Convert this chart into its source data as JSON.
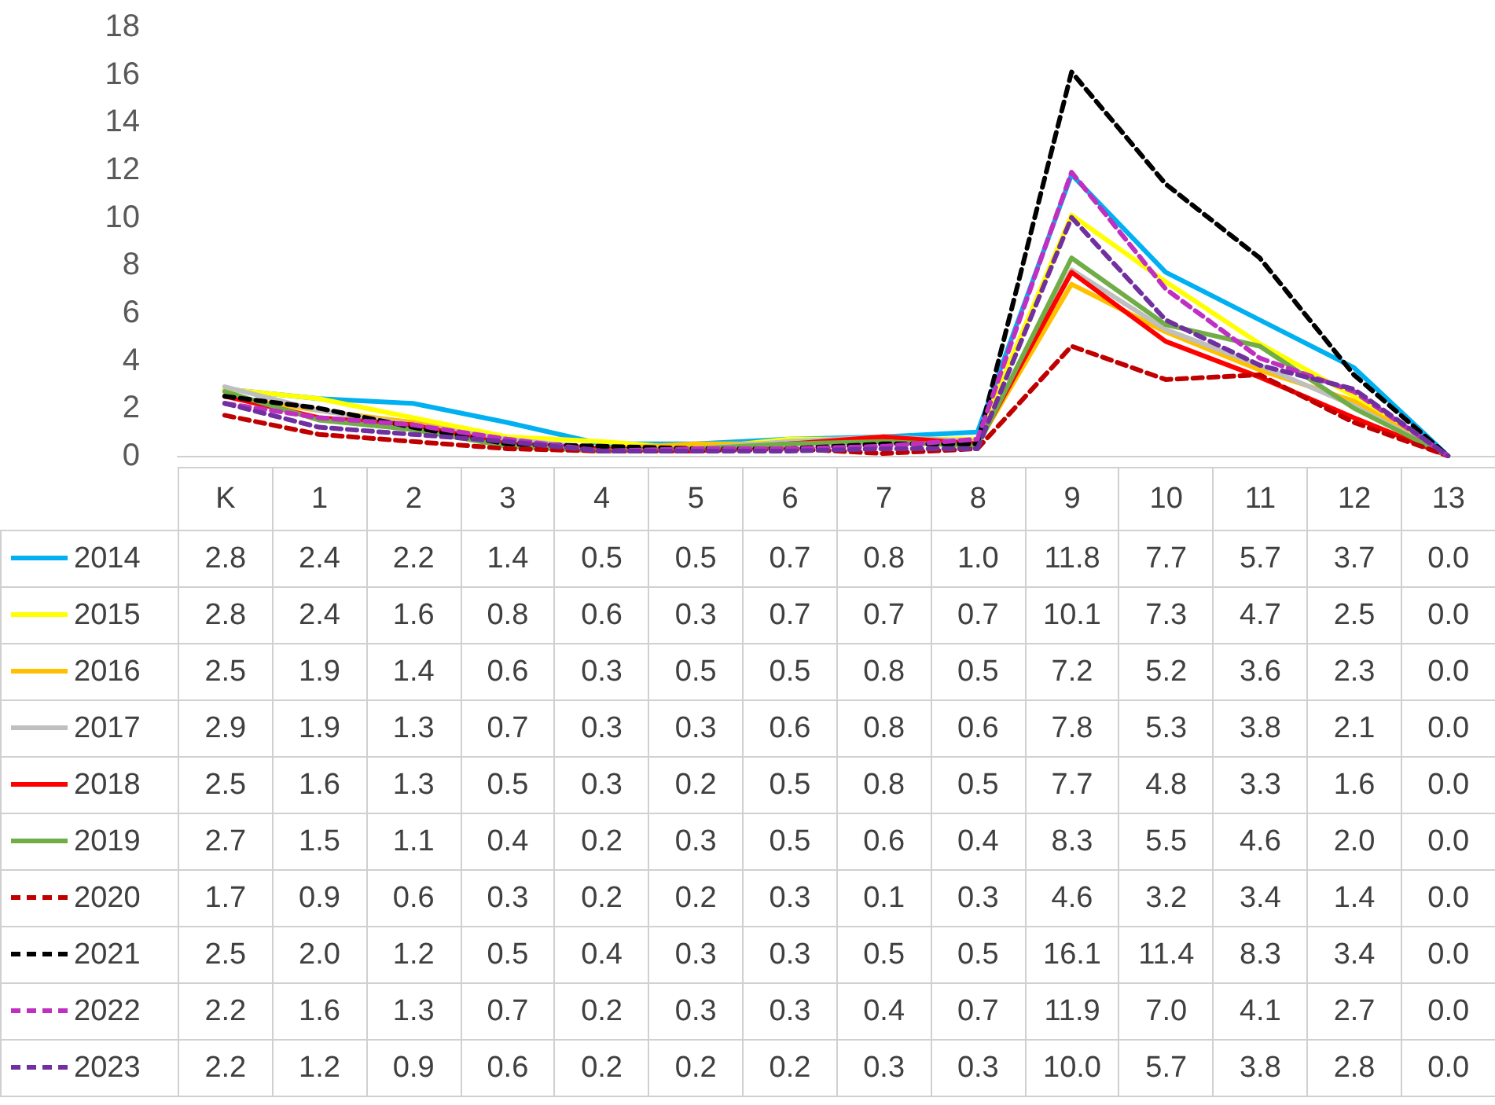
{
  "chart_data": {
    "type": "line",
    "categories": [
      "K",
      "1",
      "2",
      "3",
      "4",
      "5",
      "6",
      "7",
      "8",
      "9",
      "10",
      "11",
      "12",
      "13"
    ],
    "series": [
      {
        "name": "2014",
        "color": "#00b0f0",
        "line_style": "solid",
        "values": [
          2.8,
          2.4,
          2.2,
          1.4,
          0.5,
          0.5,
          0.7,
          0.8,
          1.0,
          11.8,
          7.7,
          5.7,
          3.7,
          0.0
        ],
        "value_labels": [
          "2.8",
          "2.4",
          "2.2",
          "1.4",
          "0.5",
          "0.5",
          "0.7",
          "0.8",
          "1.0",
          "11.8",
          "7.7",
          "5.7",
          "3.7",
          "0.0"
        ]
      },
      {
        "name": "2015",
        "color": "#ffff00",
        "line_style": "solid",
        "values": [
          2.8,
          2.4,
          1.6,
          0.8,
          0.6,
          0.3,
          0.7,
          0.7,
          0.7,
          10.1,
          7.3,
          4.7,
          2.5,
          0.0
        ],
        "value_labels": [
          "2.8",
          "2.4",
          "1.6",
          "0.8",
          "0.6",
          "0.3",
          "0.7",
          "0.7",
          "0.7",
          "10.1",
          "7.3",
          "4.7",
          "2.5",
          "0.0"
        ]
      },
      {
        "name": "2016",
        "color": "#ffc000",
        "line_style": "solid",
        "values": [
          2.5,
          1.9,
          1.4,
          0.6,
          0.3,
          0.5,
          0.5,
          0.8,
          0.5,
          7.2,
          5.2,
          3.6,
          2.3,
          0.0
        ],
        "value_labels": [
          "2.5",
          "1.9",
          "1.4",
          "0.6",
          "0.3",
          "0.5",
          "0.5",
          "0.8",
          "0.5",
          "7.2",
          "5.2",
          "3.6",
          "2.3",
          "0.0"
        ]
      },
      {
        "name": "2017",
        "color": "#bfbfbf",
        "line_style": "solid",
        "values": [
          2.9,
          1.9,
          1.3,
          0.7,
          0.3,
          0.3,
          0.6,
          0.8,
          0.6,
          7.8,
          5.3,
          3.8,
          2.1,
          0.0
        ],
        "value_labels": [
          "2.9",
          "1.9",
          "1.3",
          "0.7",
          "0.3",
          "0.3",
          "0.6",
          "0.8",
          "0.6",
          "7.8",
          "5.3",
          "3.8",
          "2.1",
          "0.0"
        ]
      },
      {
        "name": "2018",
        "color": "#ff0000",
        "line_style": "solid",
        "values": [
          2.5,
          1.6,
          1.3,
          0.5,
          0.3,
          0.2,
          0.5,
          0.8,
          0.5,
          7.7,
          4.8,
          3.3,
          1.6,
          0.0
        ],
        "value_labels": [
          "2.5",
          "1.6",
          "1.3",
          "0.5",
          "0.3",
          "0.2",
          "0.5",
          "0.8",
          "0.5",
          "7.7",
          "4.8",
          "3.3",
          "1.6",
          "0.0"
        ]
      },
      {
        "name": "2019",
        "color": "#70ad47",
        "line_style": "solid",
        "values": [
          2.7,
          1.5,
          1.1,
          0.4,
          0.2,
          0.3,
          0.5,
          0.6,
          0.4,
          8.3,
          5.5,
          4.6,
          2.0,
          0.0
        ],
        "value_labels": [
          "2.7",
          "1.5",
          "1.1",
          "0.4",
          "0.2",
          "0.3",
          "0.5",
          "0.6",
          "0.4",
          "8.3",
          "5.5",
          "4.6",
          "2.0",
          "0.0"
        ]
      },
      {
        "name": "2020",
        "color": "#c00000",
        "line_style": "dashed",
        "values": [
          1.7,
          0.9,
          0.6,
          0.3,
          0.2,
          0.2,
          0.3,
          0.1,
          0.3,
          4.6,
          3.2,
          3.4,
          1.4,
          0.0
        ],
        "value_labels": [
          "1.7",
          "0.9",
          "0.6",
          "0.3",
          "0.2",
          "0.2",
          "0.3",
          "0.1",
          "0.3",
          "4.6",
          "3.2",
          "3.4",
          "1.4",
          "0.0"
        ]
      },
      {
        "name": "2021",
        "color": "#000000",
        "line_style": "dashed",
        "values": [
          2.5,
          2.0,
          1.2,
          0.5,
          0.4,
          0.3,
          0.3,
          0.5,
          0.5,
          16.1,
          11.4,
          8.3,
          3.4,
          0.0
        ],
        "value_labels": [
          "2.5",
          "2.0",
          "1.2",
          "0.5",
          "0.4",
          "0.3",
          "0.3",
          "0.5",
          "0.5",
          "16.1",
          "11.4",
          "8.3",
          "3.4",
          "0.0"
        ]
      },
      {
        "name": "2022",
        "color": "#c030c0",
        "line_style": "dashed",
        "values": [
          2.2,
          1.6,
          1.3,
          0.7,
          0.2,
          0.3,
          0.3,
          0.4,
          0.7,
          11.9,
          7.0,
          4.1,
          2.7,
          0.0
        ],
        "value_labels": [
          "2.2",
          "1.6",
          "1.3",
          "0.7",
          "0.2",
          "0.3",
          "0.3",
          "0.4",
          "0.7",
          "11.9",
          "7.0",
          "4.1",
          "2.7",
          "0.0"
        ]
      },
      {
        "name": "2023",
        "color": "#7030a0",
        "line_style": "dashed",
        "values": [
          2.2,
          1.2,
          0.9,
          0.6,
          0.2,
          0.2,
          0.2,
          0.3,
          0.3,
          10.0,
          5.7,
          3.8,
          2.8,
          0.0
        ],
        "value_labels": [
          "2.2",
          "1.2",
          "0.9",
          "0.6",
          "0.2",
          "0.2",
          "0.2",
          "0.3",
          "0.3",
          "10.0",
          "5.7",
          "3.8",
          "2.8",
          "0.0"
        ]
      }
    ],
    "ylim": [
      0,
      18
    ],
    "yticks": [
      0,
      2,
      4,
      6,
      8,
      10,
      12,
      14,
      16,
      18
    ],
    "grid": false,
    "legend": "bottom",
    "marker": "none"
  }
}
